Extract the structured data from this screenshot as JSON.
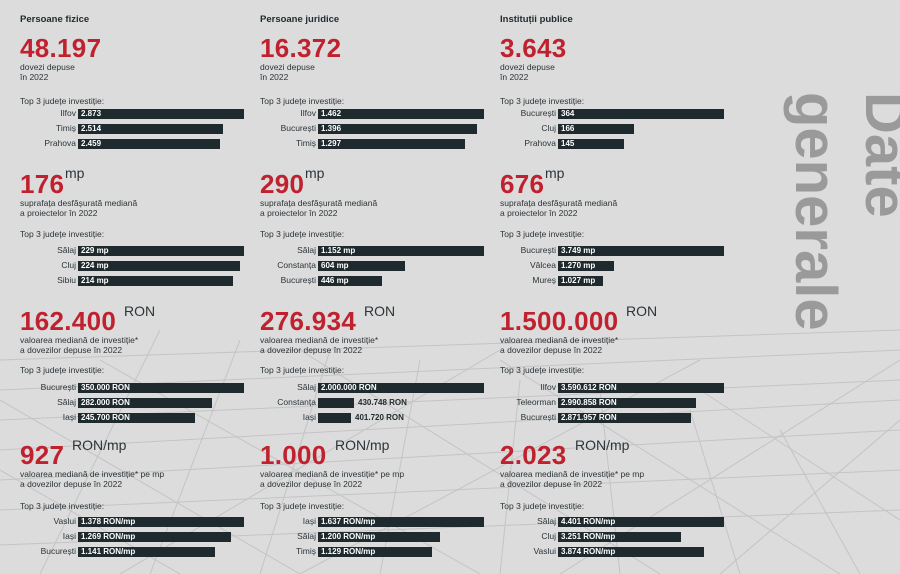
{
  "side_title": [
    "Date",
    "generale"
  ],
  "label_top3": "Top 3 județe investiție:",
  "colors": {
    "accent": "#c0212e",
    "bar": "#1f2a2e",
    "side_title": "#9a9a9a",
    "background": "#dcdcdc"
  },
  "columns": [
    {
      "heading": "Persoane fizice",
      "blocks": [
        {
          "big": "48.197",
          "unit": "",
          "desc": [
            "dovezi depuse",
            "în 2022"
          ],
          "rows": [
            {
              "county": "Ilfov",
              "label": "2.873",
              "value": 2873
            },
            {
              "county": "Timiș",
              "label": "2.514",
              "value": 2514
            },
            {
              "county": "Prahova",
              "label": "2.459",
              "value": 2459
            }
          ]
        },
        {
          "big": "176",
          "unit": "mp",
          "desc": [
            "suprafața desfășurată mediană",
            "a proiectelor în 2022"
          ],
          "rows": [
            {
              "county": "Sălaj",
              "label": "229 mp",
              "value": 229
            },
            {
              "county": "Cluj",
              "label": "224 mp",
              "value": 224
            },
            {
              "county": "Sibiu",
              "label": "214 mp",
              "value": 214
            }
          ]
        },
        {
          "big": "162.400",
          "unit": "RON",
          "desc": [
            "valoarea mediană de investiție*",
            "a dovezilor depuse în 2022"
          ],
          "rows": [
            {
              "county": "București",
              "label": "350.000 RON",
              "value": 350000
            },
            {
              "county": "Sălaj",
              "label": "282.000 RON",
              "value": 282000
            },
            {
              "county": "Iași",
              "label": "245.700 RON",
              "value": 245700
            }
          ]
        },
        {
          "big": "927",
          "unit": "RON/mp",
          "desc": [
            "valoarea mediană de investiție* pe mp",
            "a dovezilor depuse în 2022"
          ],
          "rows": [
            {
              "county": "Vaslui",
              "label": "1.378 RON/mp",
              "value": 1378
            },
            {
              "county": "Iași",
              "label": "1.269 RON/mp",
              "value": 1269
            },
            {
              "county": "București",
              "label": "1.141 RON/mp",
              "value": 1141
            }
          ]
        }
      ]
    },
    {
      "heading": "Persoane juridice",
      "blocks": [
        {
          "big": "16.372",
          "unit": "",
          "desc": [
            "dovezi depuse",
            "în 2022"
          ],
          "rows": [
            {
              "county": "Ilfov",
              "label": "1.462",
              "value": 1462
            },
            {
              "county": "București",
              "label": "1.396",
              "value": 1396
            },
            {
              "county": "Timiș",
              "label": "1.297",
              "value": 1297
            }
          ]
        },
        {
          "big": "290",
          "unit": "mp",
          "desc": [
            "suprafața desfășurată mediană",
            "a proiectelor în 2022"
          ],
          "rows": [
            {
              "county": "Sălaj",
              "label": "1.152 mp",
              "value": 1152
            },
            {
              "county": "Constanța",
              "label": "604 mp",
              "value": 604
            },
            {
              "county": "București",
              "label": "446 mp",
              "value": 446
            }
          ]
        },
        {
          "big": "276.934",
          "unit": "RON",
          "desc": [
            "valoarea mediană de investiție*",
            "a dovezilor depuse în 2022"
          ],
          "rows": [
            {
              "county": "Sălaj",
              "label": "2.000.000 RON",
              "value": 2000000
            },
            {
              "county": "Constanța",
              "label": "430.748 RON",
              "value": 430748
            },
            {
              "county": "Iași",
              "label": "401.720 RON",
              "value": 401720
            }
          ]
        },
        {
          "big": "1.000",
          "unit": "RON/mp",
          "desc": [
            "valoarea mediană de investiție* pe mp",
            "a dovezilor depuse în 2022"
          ],
          "rows": [
            {
              "county": "Iași",
              "label": "1.637 RON/mp",
              "value": 1637
            },
            {
              "county": "Sălaj",
              "label": "1.200 RON/mp",
              "value": 1200
            },
            {
              "county": "Timiș",
              "label": "1.129 RON/mp",
              "value": 1129
            }
          ]
        }
      ]
    },
    {
      "heading": "Instituții publice",
      "blocks": [
        {
          "big": "3.643",
          "unit": "",
          "desc": [
            "dovezi depuse",
            "în 2022"
          ],
          "rows": [
            {
              "county": "București",
              "label": "364",
              "value": 364
            },
            {
              "county": "Cluj",
              "label": "166",
              "value": 166
            },
            {
              "county": "Prahova",
              "label": "145",
              "value": 145
            }
          ]
        },
        {
          "big": "676",
          "unit": "mp",
          "desc": [
            "suprafața desfășurată mediană",
            "a proiectelor în 2022"
          ],
          "rows": [
            {
              "county": "București",
              "label": "3.749 mp",
              "value": 3749
            },
            {
              "county": "Vâlcea",
              "label": "1.270 mp",
              "value": 1270
            },
            {
              "county": "Mureș",
              "label": "1.027 mp",
              "value": 1027
            }
          ]
        },
        {
          "big": "1.500.000",
          "unit": "RON",
          "desc": [
            "valoarea mediană de investiție*",
            "a dovezilor depuse în 2022"
          ],
          "rows": [
            {
              "county": "Ilfov",
              "label": "3.590.612 RON",
              "value": 3590612
            },
            {
              "county": "Teleorman",
              "label": "2.990.858 RON",
              "value": 2990858
            },
            {
              "county": "București",
              "label": "2.871.957 RON",
              "value": 2871957
            }
          ]
        },
        {
          "big": "2.023",
          "unit": "RON/mp",
          "desc": [
            "valoarea mediană de investiție* pe mp",
            "a dovezilor depuse în 2022"
          ],
          "rows": [
            {
              "county": "Sălaj",
              "label": "4.401 RON/mp",
              "value": 4401
            },
            {
              "county": "Cluj",
              "label": "3.251 RON/mp",
              "value": 3251
            },
            {
              "county": "Vaslui",
              "label": "3.874 RON/mp",
              "value": 3874
            }
          ]
        }
      ]
    }
  ],
  "chart_data": [
    {
      "type": "bar",
      "title": "Persoane fizice — dovezi depuse în 2022",
      "categories": [
        "Ilfov",
        "Timiș",
        "Prahova"
      ],
      "values": [
        2873,
        2514,
        2459
      ]
    },
    {
      "type": "bar",
      "title": "Persoane fizice — suprafața desfășurată mediană (mp)",
      "categories": [
        "Sălaj",
        "Cluj",
        "Sibiu"
      ],
      "values": [
        229,
        224,
        214
      ]
    },
    {
      "type": "bar",
      "title": "Persoane fizice — valoarea mediană de investiție (RON)",
      "categories": [
        "București",
        "Sălaj",
        "Iași"
      ],
      "values": [
        350000,
        282000,
        245700
      ]
    },
    {
      "type": "bar",
      "title": "Persoane fizice — valoarea mediană de investiție pe mp (RON/mp)",
      "categories": [
        "Vaslui",
        "Iași",
        "București"
      ],
      "values": [
        1378,
        1269,
        1141
      ]
    },
    {
      "type": "bar",
      "title": "Persoane juridice — dovezi depuse în 2022",
      "categories": [
        "Ilfov",
        "București",
        "Timiș"
      ],
      "values": [
        1462,
        1396,
        1297
      ]
    },
    {
      "type": "bar",
      "title": "Persoane juridice — suprafața desfășurată mediană (mp)",
      "categories": [
        "Sălaj",
        "Constanța",
        "București"
      ],
      "values": [
        1152,
        604,
        446
      ]
    },
    {
      "type": "bar",
      "title": "Persoane juridice — valoarea mediană de investiție (RON)",
      "categories": [
        "Sălaj",
        "Constanța",
        "Iași"
      ],
      "values": [
        2000000,
        430748,
        401720
      ]
    },
    {
      "type": "bar",
      "title": "Persoane juridice — valoarea mediană de investiție pe mp (RON/mp)",
      "categories": [
        "Iași",
        "Sălaj",
        "Timiș"
      ],
      "values": [
        1637,
        1200,
        1129
      ]
    },
    {
      "type": "bar",
      "title": "Instituții publice — dovezi depuse în 2022",
      "categories": [
        "București",
        "Cluj",
        "Prahova"
      ],
      "values": [
        364,
        166,
        145
      ]
    },
    {
      "type": "bar",
      "title": "Instituții publice — suprafața desfășurată mediană (mp)",
      "categories": [
        "București",
        "Vâlcea",
        "Mureș"
      ],
      "values": [
        3749,
        1270,
        1027
      ]
    },
    {
      "type": "bar",
      "title": "Instituții publice — valoarea mediană de investiție (RON)",
      "categories": [
        "Ilfov",
        "Teleorman",
        "București"
      ],
      "values": [
        3590612,
        2990858,
        2871957
      ]
    },
    {
      "type": "bar",
      "title": "Instituții publice — valoarea mediană de investiție pe mp (RON/mp)",
      "categories": [
        "Sălaj",
        "Cluj",
        "Vaslui"
      ],
      "values": [
        4401,
        3251,
        3874
      ]
    }
  ]
}
